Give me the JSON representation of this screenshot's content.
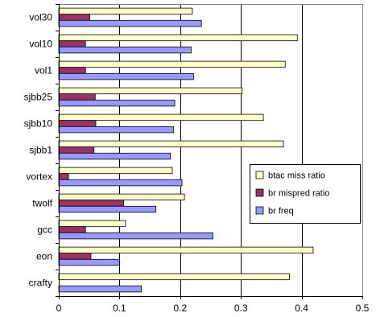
{
  "chart_data": {
    "type": "bar",
    "orientation": "horizontal",
    "title": "",
    "xlabel": "",
    "ylabel": "",
    "xlim": [
      0,
      0.5
    ],
    "x_ticks": [
      "0",
      "0.1",
      "0.2",
      "0.3",
      "0.4",
      "0.5"
    ],
    "grid": "vertical",
    "legend_position": "right-center",
    "categories": [
      "vol30",
      "vol10",
      "vol1",
      "sjbb25",
      "sjbb10",
      "sjbb1",
      "vortex",
      "twolf",
      "gcc",
      "eon",
      "crafty"
    ],
    "series": [
      {
        "name": "btac miss ratio",
        "color": "#FFFFCC",
        "values": [
          0.22,
          0.393,
          0.373,
          0.302,
          0.337,
          0.37,
          0.187,
          0.207,
          0.11,
          0.419,
          0.38
        ]
      },
      {
        "name": "br mispred ratio",
        "color": "#993366",
        "values": [
          0.051,
          0.044,
          0.044,
          0.06,
          0.061,
          0.058,
          0.016,
          0.107,
          0.044,
          0.053,
          0.0
        ]
      },
      {
        "name": "br freq",
        "color": "#9999FF",
        "values": [
          0.235,
          0.218,
          0.222,
          0.191,
          0.189,
          0.184,
          0.203,
          0.16,
          0.254,
          0.1,
          0.136
        ]
      }
    ]
  }
}
